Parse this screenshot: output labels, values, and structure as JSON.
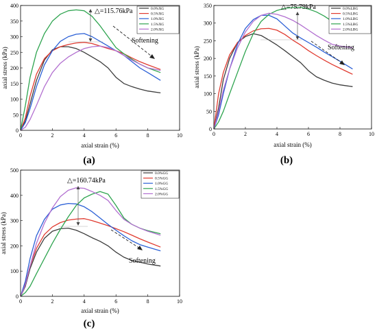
{
  "figure": {
    "panels": [
      {
        "label": "(a)",
        "delta": "△=115.76kPa",
        "softening": "Softening"
      },
      {
        "label": "(b)",
        "delta": "△=75.79kPa",
        "softening": "Softening"
      },
      {
        "label": "(c)",
        "delta": "△=160.74kPa",
        "softening": "Softening"
      }
    ]
  },
  "chart_data": [
    {
      "type": "line",
      "xlabel": "axial strain (%)",
      "ylabel": "axial stress (kPa)",
      "xlim": [
        0,
        10
      ],
      "ylim": [
        0,
        400
      ],
      "xticks": [
        0,
        2,
        4,
        6,
        8,
        10
      ],
      "yticks": [
        0,
        50,
        100,
        150,
        200,
        250,
        300,
        350,
        400
      ],
      "legend": "top-right",
      "annotations": [
        "△=115.76kPa",
        "Softening"
      ],
      "series": [
        {
          "name": "0.0%XG",
          "color": "#3b3b3b",
          "x": [
            0,
            0.3,
            0.6,
            1,
            1.5,
            2,
            2.5,
            3,
            3.5,
            4,
            4.5,
            5,
            5.5,
            6,
            6.5,
            7,
            7.5,
            8,
            8.8
          ],
          "y": [
            0,
            30,
            85,
            160,
            225,
            258,
            268,
            268,
            262,
            250,
            235,
            220,
            200,
            170,
            150,
            140,
            132,
            126,
            120
          ]
        },
        {
          "name": "0.5%XG",
          "color": "#e03a2f",
          "x": [
            0,
            0.3,
            0.6,
            1,
            1.5,
            2,
            2.5,
            3,
            3.5,
            4,
            4.5,
            5,
            5.5,
            6,
            6.5,
            7,
            7.5,
            8,
            8.8
          ],
          "y": [
            0,
            40,
            110,
            180,
            230,
            255,
            268,
            275,
            280,
            282,
            278,
            270,
            262,
            255,
            245,
            232,
            220,
            210,
            195
          ]
        },
        {
          "name": "1.0%XG",
          "color": "#2a5fd6",
          "x": [
            0,
            0.3,
            0.6,
            1,
            1.5,
            2,
            2.5,
            3,
            3.5,
            4,
            4.5,
            5,
            5.5,
            6,
            6.5,
            7,
            7.5,
            8,
            8.8
          ],
          "y": [
            0,
            25,
            70,
            140,
            210,
            255,
            285,
            300,
            308,
            310,
            300,
            285,
            270,
            255,
            240,
            220,
            200,
            185,
            160
          ]
        },
        {
          "name": "1.5%XG",
          "color": "#2ea44f",
          "x": [
            0,
            0.3,
            0.6,
            1,
            1.5,
            2,
            2.5,
            3,
            3.5,
            4,
            4.5,
            5,
            5.5,
            6,
            6.5,
            7,
            7.5,
            8,
            8.8
          ],
          "y": [
            0,
            80,
            170,
            250,
            310,
            350,
            372,
            383,
            386,
            383,
            365,
            335,
            300,
            265,
            245,
            228,
            212,
            200,
            185
          ]
        },
        {
          "name": "2.0%XG",
          "color": "#b26fd0",
          "x": [
            0,
            0.3,
            0.6,
            1,
            1.5,
            2,
            2.5,
            3,
            3.5,
            4,
            4.5,
            5,
            5.5,
            6,
            6.5,
            7,
            7.5,
            8,
            8.8
          ],
          "y": [
            0,
            10,
            35,
            80,
            140,
            185,
            215,
            235,
            250,
            262,
            268,
            270,
            265,
            255,
            240,
            225,
            212,
            200,
            192
          ]
        }
      ]
    },
    {
      "type": "line",
      "xlabel": "axial strain (%)",
      "ylabel": "axial stress (kPa)",
      "xlim": [
        0,
        10
      ],
      "ylim": [
        0,
        350
      ],
      "xticks": [
        0,
        2,
        4,
        6,
        8,
        10
      ],
      "yticks": [
        0,
        50,
        100,
        150,
        200,
        250,
        300,
        350
      ],
      "legend": "top-right",
      "annotations": [
        "△=75.79kPa",
        "Softening"
      ],
      "series": [
        {
          "name": "0.0%LBG",
          "color": "#3b3b3b",
          "x": [
            0,
            0.3,
            0.6,
            1,
            1.5,
            2,
            2.5,
            3,
            3.5,
            4,
            4.5,
            5,
            5.5,
            6,
            6.5,
            7,
            7.5,
            8,
            8.8
          ],
          "y": [
            0,
            60,
            140,
            200,
            245,
            262,
            270,
            265,
            252,
            238,
            222,
            205,
            188,
            165,
            148,
            138,
            130,
            125,
            120
          ]
        },
        {
          "name": "0.5%LBG",
          "color": "#e03a2f",
          "x": [
            0,
            0.3,
            0.6,
            1,
            1.5,
            2,
            2.5,
            3,
            3.5,
            4,
            4.5,
            5,
            5.5,
            6,
            6.5,
            7,
            7.5,
            8,
            8.8
          ],
          "y": [
            0,
            100,
            160,
            210,
            245,
            265,
            278,
            284,
            285,
            280,
            268,
            252,
            238,
            222,
            208,
            195,
            183,
            172,
            155
          ]
        },
        {
          "name": "1.0%LBG",
          "color": "#2a5fd6",
          "x": [
            0,
            0.3,
            0.6,
            1,
            1.5,
            2,
            2.5,
            3,
            3.5,
            4,
            4.5,
            5,
            5.5,
            6,
            6.5,
            7,
            7.5,
            8,
            8.8
          ],
          "y": [
            0,
            40,
            100,
            170,
            240,
            285,
            310,
            322,
            322,
            312,
            292,
            272,
            258,
            245,
            232,
            218,
            205,
            192,
            170
          ]
        },
        {
          "name": "1.5%LBG",
          "color": "#2ea44f",
          "x": [
            0,
            0.3,
            0.6,
            1,
            1.5,
            2,
            2.5,
            3,
            3.5,
            4,
            4.5,
            5,
            5.5,
            6,
            6.5,
            7,
            7.5,
            8,
            8.8
          ],
          "y": [
            0,
            20,
            50,
            100,
            160,
            220,
            270,
            305,
            325,
            336,
            342,
            344,
            345,
            340,
            332,
            320,
            305,
            292,
            272
          ]
        },
        {
          "name": "2.0%LBG",
          "color": "#b26fd0",
          "x": [
            0,
            0.3,
            0.6,
            1,
            1.5,
            2,
            2.5,
            3,
            3.5,
            4,
            4.5,
            5,
            5.5,
            6,
            6.5,
            7,
            7.5,
            8,
            8.8
          ],
          "y": [
            0,
            50,
            110,
            170,
            230,
            275,
            305,
            322,
            328,
            325,
            318,
            308,
            295,
            280,
            265,
            252,
            240,
            235,
            230
          ]
        }
      ]
    },
    {
      "type": "line",
      "xlabel": "axial strain (%)",
      "ylabel": "axial stress (kPa)",
      "xlim": [
        0,
        10
      ],
      "ylim": [
        0,
        500
      ],
      "xticks": [
        0,
        2,
        4,
        6,
        8,
        10
      ],
      "yticks": [
        0,
        100,
        200,
        300,
        400,
        500
      ],
      "legend": "top-right",
      "annotations": [
        "△=160.74kPa",
        "Softening"
      ],
      "series": [
        {
          "name": "0.0%GG",
          "color": "#3b3b3b",
          "x": [
            0,
            0.3,
            0.6,
            1,
            1.5,
            2,
            2.5,
            3,
            3.5,
            4,
            4.5,
            5,
            5.5,
            6,
            6.5,
            7,
            7.5,
            8,
            8.8
          ],
          "y": [
            0,
            40,
            110,
            175,
            230,
            258,
            268,
            270,
            262,
            248,
            232,
            218,
            200,
            175,
            155,
            142,
            135,
            128,
            120
          ]
        },
        {
          "name": "0.5%GG",
          "color": "#e03a2f",
          "x": [
            0,
            0.3,
            0.6,
            1,
            1.5,
            2,
            2.5,
            3,
            3.5,
            4,
            4.5,
            5,
            5.5,
            6,
            6.5,
            7,
            7.5,
            8,
            8.8
          ],
          "y": [
            0,
            50,
            120,
            190,
            245,
            275,
            292,
            302,
            306,
            308,
            300,
            290,
            280,
            268,
            256,
            242,
            228,
            215,
            195
          ]
        },
        {
          "name": "1.0%GG",
          "color": "#2a5fd6",
          "x": [
            0,
            0.3,
            0.6,
            1,
            1.5,
            2,
            2.5,
            3,
            3.5,
            4,
            4.5,
            5,
            5.5,
            6,
            6.5,
            7,
            7.5,
            8,
            8.8
          ],
          "y": [
            0,
            60,
            150,
            240,
            305,
            345,
            362,
            368,
            366,
            355,
            335,
            310,
            285,
            262,
            240,
            220,
            205,
            195,
            180
          ]
        },
        {
          "name": "1.5%GG",
          "color": "#2ea44f",
          "x": [
            0,
            0.3,
            0.6,
            1,
            1.5,
            2,
            2.5,
            3,
            3.5,
            4,
            4.5,
            5,
            5.5,
            6,
            6.5,
            7,
            7.5,
            8,
            8.8
          ],
          "y": [
            0,
            15,
            40,
            90,
            150,
            210,
            265,
            315,
            360,
            390,
            405,
            415,
            405,
            360,
            310,
            285,
            270,
            260,
            248
          ]
        },
        {
          "name": "2.0%GG",
          "color": "#b26fd0",
          "x": [
            0,
            0.3,
            0.6,
            1,
            1.5,
            2,
            2.5,
            3,
            3.5,
            4,
            4.5,
            5,
            5.5,
            6,
            6.5,
            7,
            7.5,
            8,
            8.8
          ],
          "y": [
            0,
            45,
            120,
            210,
            290,
            350,
            395,
            420,
            430,
            428,
            415,
            400,
            380,
            340,
            305,
            285,
            270,
            258,
            242
          ]
        }
      ]
    }
  ]
}
